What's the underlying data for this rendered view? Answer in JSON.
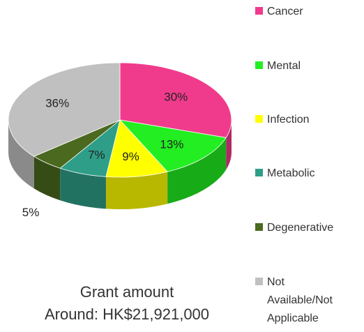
{
  "chart_data": {
    "type": "pie",
    "title": "Grant amount",
    "subtitle": "Around: HK$21,921,000",
    "categories": [
      "Cancer",
      "Mental",
      "Infection",
      "Metabolic",
      "Degenerative",
      "Not Available/Not Applicable"
    ],
    "values": [
      30,
      13,
      9,
      7,
      5,
      36
    ],
    "value_labels": [
      "30%",
      "13%",
      "9%",
      "7%",
      "5%",
      "36%"
    ],
    "colors": [
      "#f03b8c",
      "#22ee22",
      "#ffff00",
      "#2f9e88",
      "#4b6a1f",
      "#c0c0c0"
    ],
    "legend": "right"
  }
}
